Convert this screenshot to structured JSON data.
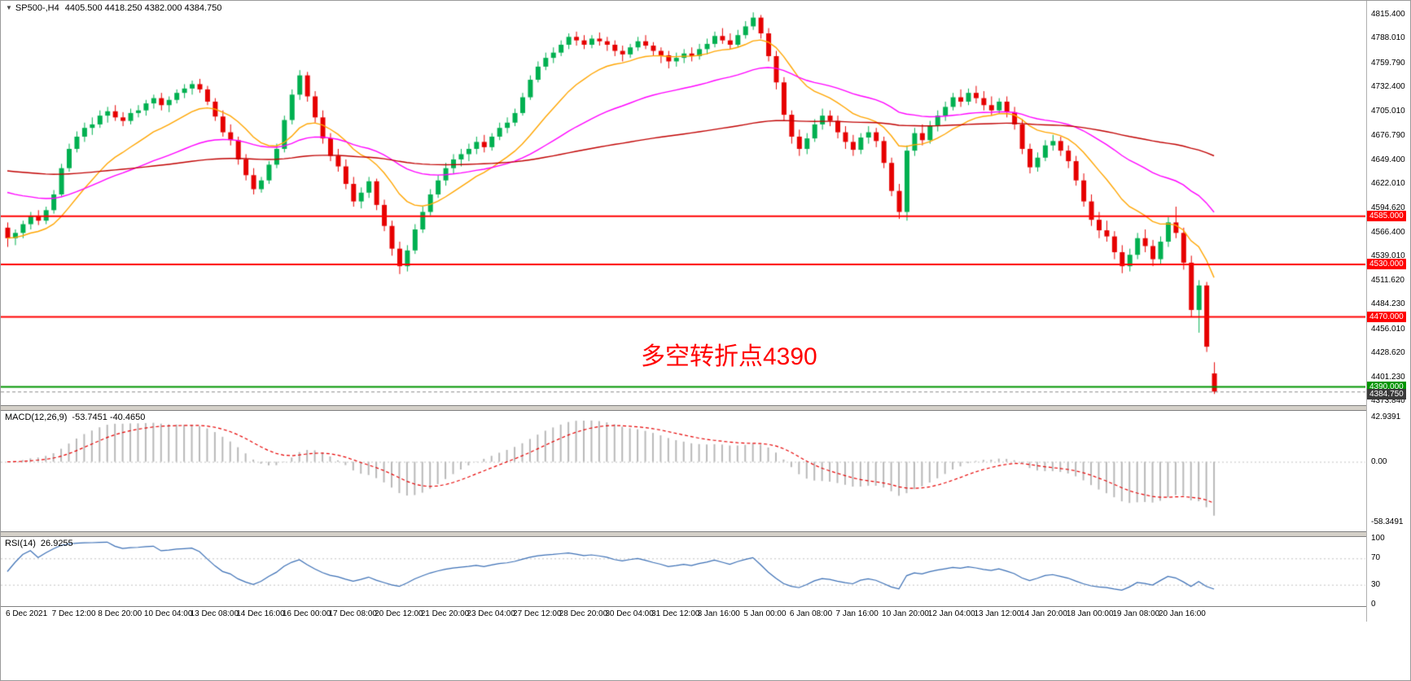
{
  "header": {
    "symbol_title": "SP500-,H4",
    "ohlc_text": "4405.500 4418.250 4382.000 4384.750"
  },
  "chart_data": {
    "type": "candlestick",
    "title": "SP500-,H4",
    "layout": {
      "bar_spacing": 9.44,
      "left_pad": 8,
      "legend_position": "top-left",
      "grid": false
    },
    "price_range": {
      "min": 4373.84,
      "max": 4815.4
    },
    "colors": {
      "up": "#00B050",
      "down": "#E60000"
    },
    "current_bar": {
      "open": 4405.5,
      "high": 4418.25,
      "low": 4382.0,
      "close": 4384.75
    },
    "annotation": {
      "text": "多空转折点4390",
      "color": "#FF0000"
    },
    "price_axis_labels": [
      "4815.400",
      "4788.010",
      "4759.790",
      "4732.400",
      "4705.010",
      "4676.790",
      "4649.400",
      "4622.010",
      "4594.620",
      "4566.400",
      "4539.010",
      "4511.620",
      "4484.230",
      "4456.010",
      "4428.620",
      "4401.230",
      "4373.840"
    ],
    "time_axis_labels": [
      "6 Dec 2021",
      "7 Dec 12:00",
      "8 Dec 20:00",
      "10 Dec 04:00",
      "13 Dec 08:00",
      "14 Dec 16:00",
      "16 Dec 00:00",
      "17 Dec 08:00",
      "20 Dec 12:00",
      "21 Dec 20:00",
      "23 Dec 04:00",
      "27 Dec 12:00",
      "28 Dec 20:00",
      "30 Dec 04:00",
      "31 Dec 12:00",
      "3 Jan 16:00",
      "5 Jan 00:00",
      "6 Jan 08:00",
      "7 Jan 16:00",
      "10 Jan 20:00",
      "12 Jan 04:00",
      "13 Jan 12:00",
      "14 Jan 20:00",
      "18 Jan 00:00",
      "19 Jan 08:00",
      "20 Jan 16:00"
    ],
    "horizontal_lines": [
      {
        "price": 4585.0,
        "label": "4585.000",
        "color": "#FF0000"
      },
      {
        "price": 4530.0,
        "label": "4530.000",
        "color": "#FF0000"
      },
      {
        "price": 4470.0,
        "label": "4470.000",
        "color": "#FF0000"
      },
      {
        "price": 4390.0,
        "label": "4390.000",
        "color": "#009500"
      }
    ],
    "current_price_label": {
      "price": 4384.75,
      "label": "4384.750",
      "bg": "#3a3a3a"
    },
    "moving_averages": [
      {
        "name": "fast-ma",
        "period": 14,
        "seed": 4560,
        "color": "#FFA500"
      },
      {
        "name": "medium-ma",
        "period": 40,
        "seed": 4615,
        "color": "#FF00FF"
      },
      {
        "name": "slow-ma",
        "period": 150,
        "seed": 4638,
        "color": "#C00000"
      }
    ],
    "macd": {
      "label": "MACD(12,26,9)",
      "values_text": "-53.7451 -40.4650",
      "fast": 12,
      "slow": 26,
      "signal": 9,
      "axis_labels": [
        "42.9391",
        "0.00",
        "-58.3491"
      ],
      "range": [
        -64,
        46
      ],
      "histogram_color": "#B8B8B8",
      "signal_color": "#E60000"
    },
    "rsi": {
      "label": "RSI(14)",
      "value_text": "26.9255",
      "period": 14,
      "axis_labels": [
        "100",
        "70",
        "30",
        "0"
      ],
      "levels": [
        70,
        30
      ],
      "line_color": "#3B6FB5"
    },
    "candles": [
      [
        4572,
        4578,
        4550,
        4560
      ],
      [
        4560,
        4570,
        4552,
        4566
      ],
      [
        4566,
        4580,
        4560,
        4576
      ],
      [
        4576,
        4590,
        4570,
        4585
      ],
      [
        4585,
        4592,
        4575,
        4580
      ],
      [
        4580,
        4596,
        4576,
        4592
      ],
      [
        4592,
        4615,
        4588,
        4610
      ],
      [
        4610,
        4645,
        4608,
        4640
      ],
      [
        4640,
        4668,
        4636,
        4662
      ],
      [
        4662,
        4682,
        4658,
        4676
      ],
      [
        4676,
        4692,
        4670,
        4686
      ],
      [
        4686,
        4698,
        4678,
        4690
      ],
      [
        4690,
        4706,
        4686,
        4700
      ],
      [
        4700,
        4710,
        4692,
        4705
      ],
      [
        4705,
        4712,
        4694,
        4698
      ],
      [
        4698,
        4704,
        4688,
        4694
      ],
      [
        4694,
        4708,
        4690,
        4703
      ],
      [
        4703,
        4712,
        4698,
        4706
      ],
      [
        4706,
        4718,
        4700,
        4714
      ],
      [
        4714,
        4724,
        4708,
        4720
      ],
      [
        4720,
        4726,
        4706,
        4712
      ],
      [
        4712,
        4722,
        4704,
        4718
      ],
      [
        4718,
        4730,
        4714,
        4726
      ],
      [
        4726,
        4736,
        4720,
        4731
      ],
      [
        4731,
        4740,
        4724,
        4736
      ],
      [
        4736,
        4742,
        4726,
        4730
      ],
      [
        4730,
        4734,
        4712,
        4716
      ],
      [
        4716,
        4720,
        4694,
        4699
      ],
      [
        4699,
        4706,
        4676,
        4681
      ],
      [
        4681,
        4690,
        4666,
        4672
      ],
      [
        4672,
        4676,
        4644,
        4650
      ],
      [
        4650,
        4656,
        4626,
        4632
      ],
      [
        4632,
        4640,
        4610,
        4616
      ],
      [
        4616,
        4630,
        4612,
        4626
      ],
      [
        4626,
        4648,
        4622,
        4644
      ],
      [
        4644,
        4668,
        4640,
        4662
      ],
      [
        4662,
        4700,
        4658,
        4695
      ],
      [
        4695,
        4730,
        4690,
        4724
      ],
      [
        4724,
        4752,
        4718,
        4746
      ],
      [
        4746,
        4750,
        4716,
        4722
      ],
      [
        4722,
        4728,
        4692,
        4698
      ],
      [
        4698,
        4706,
        4668,
        4674
      ],
      [
        4674,
        4680,
        4648,
        4654
      ],
      [
        4654,
        4662,
        4636,
        4642
      ],
      [
        4642,
        4650,
        4616,
        4622
      ],
      [
        4622,
        4630,
        4596,
        4602
      ],
      [
        4602,
        4618,
        4594,
        4612
      ],
      [
        4612,
        4630,
        4606,
        4625
      ],
      [
        4625,
        4628,
        4592,
        4598
      ],
      [
        4598,
        4604,
        4568,
        4574
      ],
      [
        4574,
        4580,
        4540,
        4548
      ],
      [
        4548,
        4556,
        4519,
        4528
      ],
      [
        4528,
        4552,
        4522,
        4546
      ],
      [
        4546,
        4576,
        4542,
        4570
      ],
      [
        4570,
        4596,
        4566,
        4590
      ],
      [
        4590,
        4616,
        4586,
        4610
      ],
      [
        4610,
        4632,
        4606,
        4626
      ],
      [
        4626,
        4646,
        4620,
        4640
      ],
      [
        4640,
        4656,
        4634,
        4650
      ],
      [
        4650,
        4662,
        4642,
        4656
      ],
      [
        4656,
        4668,
        4648,
        4662
      ],
      [
        4662,
        4676,
        4656,
        4670
      ],
      [
        4670,
        4678,
        4658,
        4664
      ],
      [
        4664,
        4680,
        4660,
        4676
      ],
      [
        4676,
        4692,
        4672,
        4686
      ],
      [
        4686,
        4698,
        4680,
        4692
      ],
      [
        4692,
        4708,
        4688,
        4703
      ],
      [
        4703,
        4726,
        4700,
        4721
      ],
      [
        4721,
        4746,
        4718,
        4741
      ],
      [
        4741,
        4762,
        4738,
        4756
      ],
      [
        4756,
        4772,
        4752,
        4766
      ],
      [
        4766,
        4778,
        4760,
        4772
      ],
      [
        4772,
        4786,
        4768,
        4781
      ],
      [
        4781,
        4794,
        4776,
        4790
      ],
      [
        4790,
        4796,
        4780,
        4786
      ],
      [
        4786,
        4792,
        4776,
        4781
      ],
      [
        4781,
        4792,
        4777,
        4788
      ],
      [
        4788,
        4795,
        4780,
        4785
      ],
      [
        4785,
        4790,
        4774,
        4781
      ],
      [
        4781,
        4786,
        4768,
        4774
      ],
      [
        4774,
        4780,
        4762,
        4770
      ],
      [
        4770,
        4782,
        4766,
        4778
      ],
      [
        4778,
        4790,
        4774,
        4785
      ],
      [
        4785,
        4792,
        4776,
        4780
      ],
      [
        4780,
        4784,
        4768,
        4774
      ],
      [
        4774,
        4778,
        4760,
        4769
      ],
      [
        4769,
        4774,
        4754,
        4762
      ],
      [
        4762,
        4772,
        4756,
        4766
      ],
      [
        4766,
        4776,
        4760,
        4771
      ],
      [
        4771,
        4778,
        4762,
        4768
      ],
      [
        4768,
        4782,
        4764,
        4776
      ],
      [
        4776,
        4788,
        4770,
        4782
      ],
      [
        4782,
        4796,
        4778,
        4791
      ],
      [
        4791,
        4800,
        4782,
        4786
      ],
      [
        4786,
        4794,
        4776,
        4781
      ],
      [
        4781,
        4798,
        4778,
        4792
      ],
      [
        4792,
        4808,
        4788,
        4802
      ],
      [
        4802,
        4818,
        4798,
        4812
      ],
      [
        4812,
        4815,
        4788,
        4794
      ],
      [
        4794,
        4800,
        4762,
        4768
      ],
      [
        4768,
        4774,
        4730,
        4738
      ],
      [
        4738,
        4744,
        4694,
        4701
      ],
      [
        4701,
        4706,
        4668,
        4676
      ],
      [
        4676,
        4684,
        4654,
        4662
      ],
      [
        4662,
        4680,
        4656,
        4674
      ],
      [
        4674,
        4696,
        4670,
        4690
      ],
      [
        4690,
        4708,
        4684,
        4700
      ],
      [
        4700,
        4706,
        4688,
        4694
      ],
      [
        4694,
        4700,
        4674,
        4681
      ],
      [
        4681,
        4688,
        4662,
        4670
      ],
      [
        4670,
        4678,
        4654,
        4661
      ],
      [
        4661,
        4680,
        4656,
        4675
      ],
      [
        4675,
        4688,
        4668,
        4681
      ],
      [
        4681,
        4686,
        4664,
        4671
      ],
      [
        4671,
        4676,
        4640,
        4646
      ],
      [
        4646,
        4652,
        4608,
        4614
      ],
      [
        4614,
        4622,
        4582,
        4590
      ],
      [
        4590,
        4666,
        4580,
        4660
      ],
      [
        4660,
        4686,
        4654,
        4680
      ],
      [
        4680,
        4690,
        4666,
        4672
      ],
      [
        4672,
        4694,
        4668,
        4688
      ],
      [
        4688,
        4706,
        4682,
        4700
      ],
      [
        4700,
        4716,
        4694,
        4710
      ],
      [
        4710,
        4726,
        4706,
        4721
      ],
      [
        4721,
        4730,
        4710,
        4716
      ],
      [
        4716,
        4731,
        4712,
        4726
      ],
      [
        4726,
        4734,
        4714,
        4720
      ],
      [
        4720,
        4728,
        4706,
        4712
      ],
      [
        4712,
        4722,
        4700,
        4706
      ],
      [
        4706,
        4720,
        4702,
        4716
      ],
      [
        4716,
        4722,
        4698,
        4704
      ],
      [
        4704,
        4710,
        4684,
        4690
      ],
      [
        4690,
        4696,
        4656,
        4662
      ],
      [
        4662,
        4668,
        4634,
        4641
      ],
      [
        4641,
        4658,
        4636,
        4652
      ],
      [
        4652,
        4672,
        4648,
        4666
      ],
      [
        4666,
        4678,
        4660,
        4671
      ],
      [
        4671,
        4676,
        4654,
        4660
      ],
      [
        4660,
        4666,
        4640,
        4648
      ],
      [
        4648,
        4654,
        4620,
        4626
      ],
      [
        4626,
        4634,
        4596,
        4602
      ],
      [
        4602,
        4610,
        4574,
        4581
      ],
      [
        4581,
        4590,
        4560,
        4569
      ],
      [
        4569,
        4580,
        4556,
        4562
      ],
      [
        4562,
        4568,
        4536,
        4544
      ],
      [
        4544,
        4552,
        4520,
        4528
      ],
      [
        4528,
        4548,
        4522,
        4541
      ],
      [
        4541,
        4566,
        4536,
        4560
      ],
      [
        4560,
        4570,
        4544,
        4551
      ],
      [
        4551,
        4558,
        4528,
        4536
      ],
      [
        4536,
        4562,
        4530,
        4556
      ],
      [
        4556,
        4584,
        4550,
        4578
      ],
      [
        4578,
        4596,
        4560,
        4566
      ],
      [
        4566,
        4572,
        4524,
        4532
      ],
      [
        4532,
        4540,
        4470,
        4478
      ],
      [
        4478,
        4512,
        4452,
        4506
      ],
      [
        4506,
        4510,
        4430,
        4436
      ],
      [
        4405.5,
        4418.25,
        4382,
        4384.75
      ]
    ]
  }
}
